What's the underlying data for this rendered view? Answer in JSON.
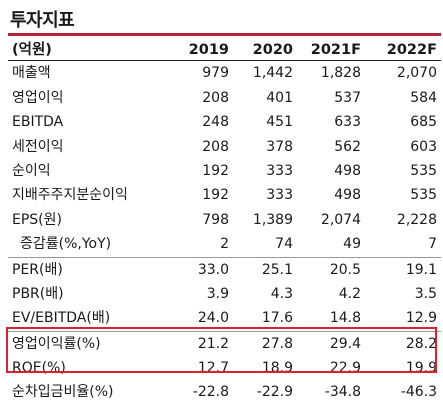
{
  "title": "투자지표",
  "header": {
    "label": "(억원)",
    "years": [
      "2019",
      "2020",
      "2021F",
      "2022F"
    ]
  },
  "rows": [
    {
      "label": "매출액",
      "values": [
        "979",
        "1,442",
        "1,828",
        "2,070"
      ]
    },
    {
      "label": "영업이익",
      "values": [
        "208",
        "401",
        "537",
        "584"
      ]
    },
    {
      "label": "EBITDA",
      "values": [
        "248",
        "451",
        "633",
        "685"
      ]
    },
    {
      "label": "세전이익",
      "values": [
        "208",
        "378",
        "562",
        "603"
      ]
    },
    {
      "label": "순이익",
      "values": [
        "192",
        "333",
        "498",
        "535"
      ]
    },
    {
      "label": "지배주주지분순이익",
      "values": [
        "192",
        "333",
        "498",
        "535"
      ]
    },
    {
      "label": "EPS(원)",
      "values": [
        "798",
        "1,389",
        "2,074",
        "2,228"
      ]
    },
    {
      "label": "증감률(%,YoY)",
      "values": [
        "2",
        "74",
        "49",
        "7"
      ]
    },
    {
      "label": "PER(배)",
      "values": [
        "33.0",
        "25.1",
        "20.5",
        "19.1"
      ]
    },
    {
      "label": "PBR(배)",
      "values": [
        "3.9",
        "4.3",
        "4.2",
        "3.5"
      ]
    },
    {
      "label": "EV/EBITDA(배)",
      "values": [
        "24.0",
        "17.6",
        "14.8",
        "12.9"
      ]
    },
    {
      "label": "영업이익률(%)",
      "values": [
        "21.2",
        "27.8",
        "29.4",
        "28.2"
      ]
    },
    {
      "label": "ROE(%)",
      "values": [
        "12.7",
        "18.9",
        "22.9",
        "19.9"
      ]
    },
    {
      "label": "순차입금비율(%)",
      "values": [
        "-22.8",
        "-22.9",
        "-34.8",
        "-46.3"
      ]
    }
  ],
  "highlight_color": "#d8222e",
  "accent_color": "#b0243a"
}
